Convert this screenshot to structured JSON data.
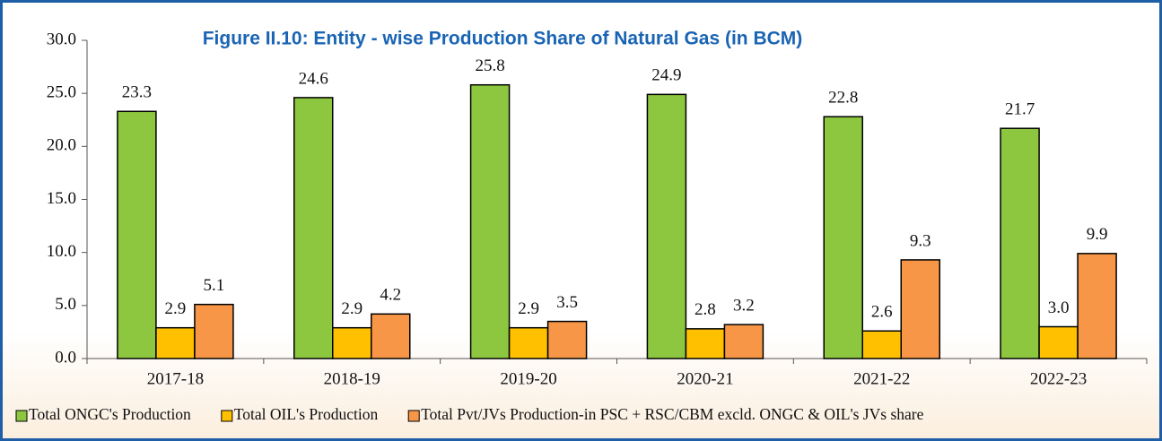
{
  "chart_data": {
    "type": "bar",
    "title": "Figure II.10: Entity - wise Production Share of  Natural Gas (in BCM)",
    "categories": [
      "2017-18",
      "2018-19",
      "2019-20",
      "2020-21",
      "2021-22",
      "2022-23"
    ],
    "series": [
      {
        "name": "Total ONGC's Production",
        "color": "#8dc63f",
        "values": [
          23.3,
          24.6,
          25.8,
          24.9,
          22.8,
          21.7
        ],
        "value_labels": [
          "23.3",
          "24.6",
          "25.8",
          "24.9",
          "22.8",
          "21.7"
        ]
      },
      {
        "name": "Total OIL's Production",
        "color": "#ffc000",
        "values": [
          2.9,
          2.9,
          2.9,
          2.8,
          2.6,
          3.0
        ],
        "value_labels": [
          "2.9",
          "2.9",
          "2.9",
          "2.8",
          "2.6",
          "3.0"
        ]
      },
      {
        "name": "Total Pvt/JVs Production-in PSC + RSC/CBM excld. ONGC & OIL's JVs share",
        "color": "#f79646",
        "values": [
          5.1,
          4.2,
          3.5,
          3.2,
          9.3,
          9.9
        ],
        "value_labels": [
          "5.1",
          "4.2",
          "3.5",
          "3.2",
          "9.3",
          "9.9"
        ]
      }
    ],
    "ylim": [
      0,
      30
    ],
    "yticks": [
      {
        "value": 0,
        "label": "0.0"
      },
      {
        "value": 5,
        "label": "5.0"
      },
      {
        "value": 10,
        "label": "10.0"
      },
      {
        "value": 15,
        "label": "15.0"
      },
      {
        "value": 20,
        "label": "20.0"
      },
      {
        "value": 25,
        "label": "25.0"
      },
      {
        "value": 30,
        "label": "30.0"
      }
    ],
    "legend": "bottom"
  }
}
